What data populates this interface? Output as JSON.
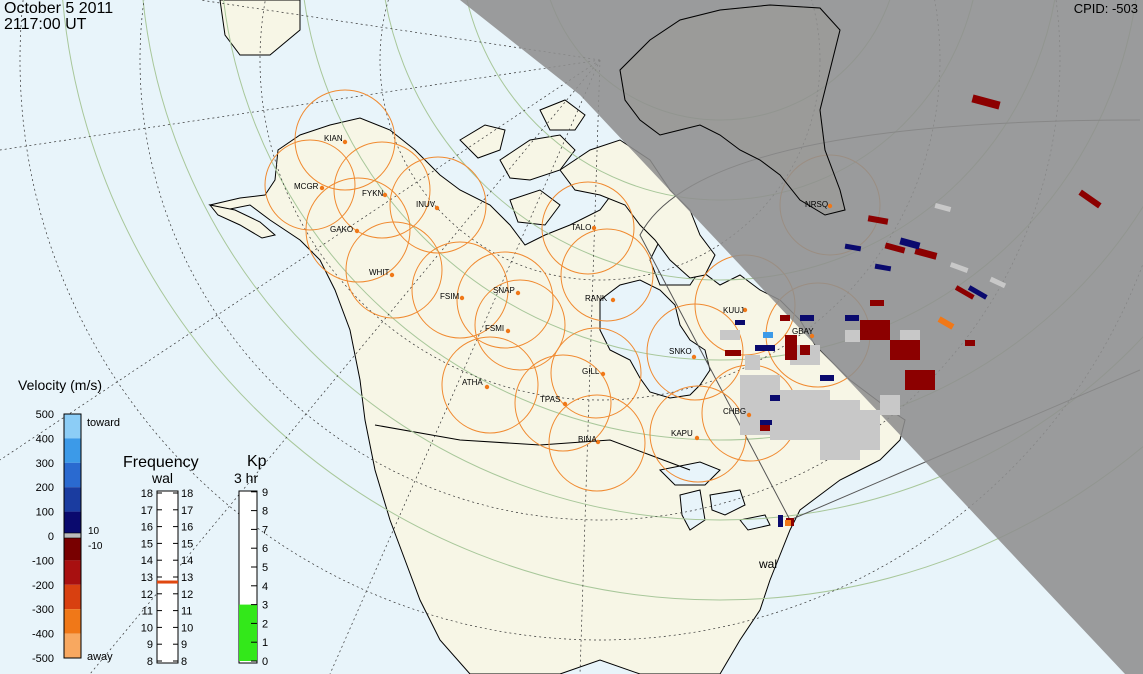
{
  "header": {
    "date": "October  5 2011",
    "time": "2117:00 UT",
    "cpid": "CPID:  -503"
  },
  "stations": [
    {
      "code": "KIAN"
    },
    {
      "code": "MCGR"
    },
    {
      "code": "FYKN"
    },
    {
      "code": "INUV"
    },
    {
      "code": "GAKO"
    },
    {
      "code": "WHIT"
    },
    {
      "code": "TALO"
    },
    {
      "code": "NRSQ"
    },
    {
      "code": "FSIM"
    },
    {
      "code": "SNAP"
    },
    {
      "code": "FSMI"
    },
    {
      "code": "RANK"
    },
    {
      "code": "KUUJ"
    },
    {
      "code": "GBAY"
    },
    {
      "code": "SNKO"
    },
    {
      "code": "ATHA"
    },
    {
      "code": "GILL"
    },
    {
      "code": "TPAS"
    },
    {
      "code": "CHBG"
    },
    {
      "code": "KAPU"
    },
    {
      "code": "BINA"
    }
  ],
  "radar_site": "wal",
  "velocity_scale": {
    "title": "Velocity (m/s)",
    "ticks": [
      "500",
      "400",
      "300",
      "200",
      "100",
      "0",
      "-100",
      "-200",
      "-300",
      "-400",
      "-500"
    ],
    "toward_label": "toward",
    "away_label": "away",
    "side_labels": [
      "10",
      "-10"
    ],
    "colors": [
      "#fcdcb8",
      "#f8a860",
      "#f07818",
      "#d84010",
      "#a81010",
      "#780000",
      "#0a0a6e",
      "#1a3ca0",
      "#2a6ad0",
      "#3c9ae8",
      "#8ccdf6"
    ]
  },
  "frequency_scale": {
    "title": "Frequency",
    "subtitle": "wal",
    "ticks": [
      "18",
      "17",
      "16",
      "15",
      "14",
      "13",
      "12",
      "11",
      "10",
      "9",
      "8"
    ],
    "current_mhz": 12.7,
    "indicator_color": "#e04810"
  },
  "kp_scale": {
    "title": "Kp",
    "subtitle": "3 hr",
    "ticks": [
      "9",
      "8",
      "7",
      "6",
      "5",
      "4",
      "3",
      "2",
      "1",
      "0"
    ],
    "current": 3,
    "fill_color": "#33e81a"
  }
}
